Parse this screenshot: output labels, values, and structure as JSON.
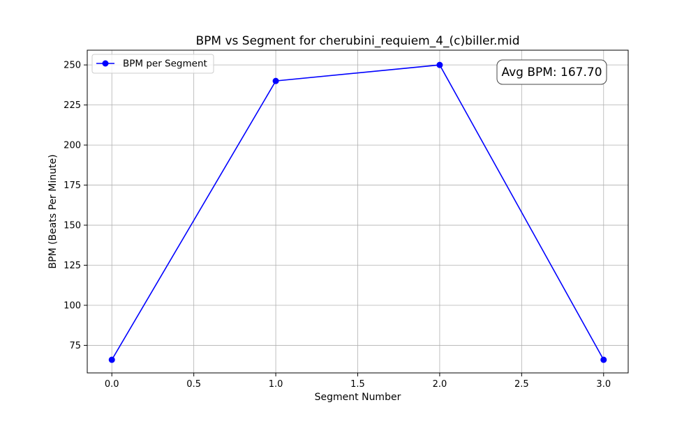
{
  "chart_data": {
    "type": "line",
    "title": "BPM vs Segment for cherubini_requiem_4_(c)biller.mid",
    "xlabel": "Segment Number",
    "ylabel": "BPM (Beats Per Minute)",
    "x": [
      0,
      1,
      2,
      3
    ],
    "series": [
      {
        "name": "BPM per Segment",
        "color": "#0000ff",
        "marker": "circle",
        "values": [
          66,
          240,
          250,
          66
        ]
      }
    ],
    "xlim": [
      -0.15,
      3.15
    ],
    "ylim": [
      57.8,
      259.2
    ],
    "xticks": [
      0.0,
      0.5,
      1.0,
      1.5,
      2.0,
      2.5,
      3.0
    ],
    "xtick_labels": [
      "0.0",
      "0.5",
      "1.0",
      "1.5",
      "2.0",
      "2.5",
      "3.0"
    ],
    "yticks": [
      75,
      100,
      125,
      150,
      175,
      200,
      225,
      250
    ],
    "ytick_labels": [
      "75",
      "100",
      "125",
      "150",
      "175",
      "200",
      "225",
      "250"
    ],
    "grid": true,
    "legend_position": "top-left",
    "annotation": {
      "text": "Avg BPM: 167.70",
      "position": "top-right"
    }
  }
}
